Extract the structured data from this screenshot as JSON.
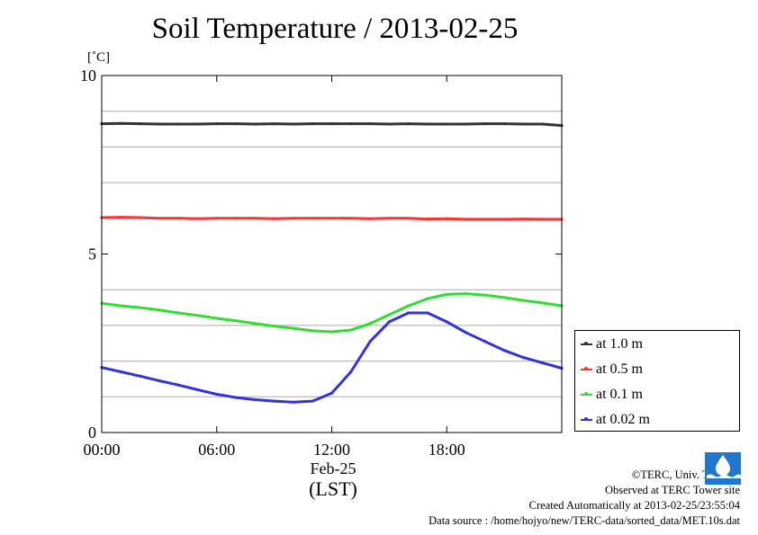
{
  "header": {
    "title": "Soil Temperature / 2013-02-25",
    "unit": "[˚C]"
  },
  "chart_data": {
    "type": "line",
    "title": "Soil Temperature / 2013-02-25",
    "xlabel": "(LST)",
    "x_date_label": "Feb-25",
    "ylabel": "[˚C]",
    "ylim": [
      0,
      10
    ],
    "xlim": [
      0,
      24
    ],
    "x_unit": "hours",
    "x_ticks": [
      0,
      6,
      12,
      18
    ],
    "x_tick_labels": [
      "00:00",
      "06:00",
      "12:00",
      "18:00"
    ],
    "y_ticks": [
      0,
      5,
      10
    ],
    "y_tick_labels": [
      "0",
      "5",
      "10"
    ],
    "y_minor_grid": [
      1,
      2,
      3,
      4,
      6,
      7,
      8,
      9
    ],
    "grid": true,
    "legend_position": "right",
    "series": [
      {
        "name": "at 1.0 m",
        "color": "#333333",
        "x": [
          0,
          1,
          2,
          3,
          4,
          5,
          6,
          7,
          8,
          9,
          10,
          11,
          12,
          13,
          14,
          15,
          16,
          17,
          18,
          19,
          20,
          21,
          22,
          23,
          24
        ],
        "y": [
          8.65,
          8.66,
          8.65,
          8.64,
          8.64,
          8.64,
          8.65,
          8.65,
          8.64,
          8.65,
          8.64,
          8.65,
          8.65,
          8.65,
          8.65,
          8.64,
          8.65,
          8.64,
          8.64,
          8.64,
          8.65,
          8.65,
          8.64,
          8.64,
          8.6
        ]
      },
      {
        "name": "at 0.5 m",
        "color": "#ff3333",
        "x": [
          0,
          1,
          2,
          3,
          4,
          5,
          6,
          7,
          8,
          9,
          10,
          11,
          12,
          13,
          14,
          15,
          16,
          17,
          18,
          19,
          20,
          21,
          22,
          23,
          24
        ],
        "y": [
          6.02,
          6.03,
          6.02,
          6.0,
          6.0,
          5.99,
          6.0,
          6.0,
          6.0,
          5.99,
          6.0,
          6.0,
          6.0,
          6.0,
          5.99,
          6.0,
          6.0,
          5.98,
          5.99,
          5.97,
          5.97,
          5.97,
          5.98,
          5.97,
          5.97
        ]
      },
      {
        "name": "at 0.1 m",
        "color": "#33dd33",
        "x": [
          0,
          1,
          2,
          3,
          4,
          5,
          6,
          7,
          8,
          9,
          10,
          11,
          12,
          13,
          14,
          15,
          16,
          17,
          18,
          19,
          20,
          21,
          22,
          23,
          24
        ],
        "y": [
          3.62,
          3.55,
          3.5,
          3.43,
          3.35,
          3.28,
          3.2,
          3.13,
          3.05,
          2.98,
          2.92,
          2.85,
          2.82,
          2.87,
          3.05,
          3.3,
          3.55,
          3.75,
          3.87,
          3.89,
          3.85,
          3.78,
          3.7,
          3.63,
          3.55
        ]
      },
      {
        "name": "at 0.02 m",
        "color": "#3333dd",
        "x": [
          0,
          1,
          2,
          3,
          4,
          5,
          6,
          7,
          8,
          9,
          10,
          11,
          12,
          13,
          14,
          15,
          16,
          17,
          18,
          19,
          20,
          21,
          22,
          23,
          24
        ],
        "y": [
          1.82,
          1.7,
          1.58,
          1.45,
          1.33,
          1.2,
          1.07,
          0.98,
          0.92,
          0.88,
          0.85,
          0.88,
          1.1,
          1.7,
          2.55,
          3.1,
          3.35,
          3.35,
          3.1,
          2.8,
          2.55,
          2.3,
          2.1,
          1.95,
          1.8
        ]
      }
    ]
  },
  "credits": {
    "copyright": "©TERC, Univ. Tsukuba",
    "site": "Observed at TERC Tower site",
    "created": "Created Automatically at 2013-02-25/23:55:04",
    "source": "Data source : /home/hojyo/new/TERC-data/sorted_data/MET.10s.dat",
    "logo_text": "TERC"
  }
}
